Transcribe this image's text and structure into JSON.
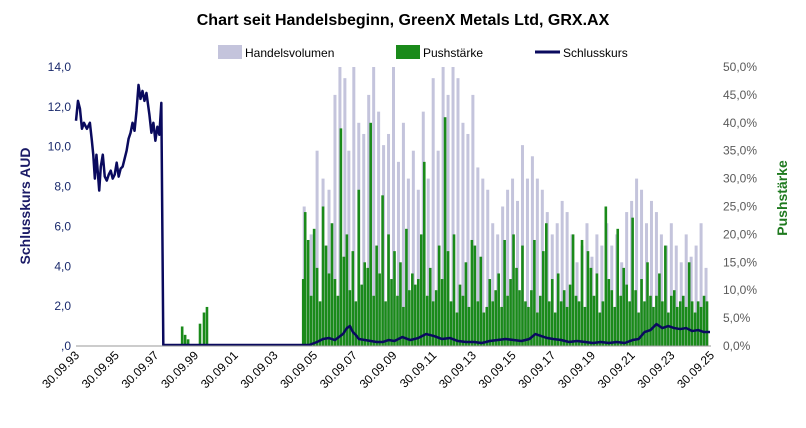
{
  "chart_data": {
    "type": "line",
    "title": "Chart seit Handelsbeginn, GreenX Metals Ltd, GRX.AX",
    "legend": {
      "position": "top",
      "entries": [
        {
          "name": "Handelsvolumen",
          "color": "#c4c4dc",
          "kind": "area"
        },
        {
          "name": "Pushstärke",
          "color": "#1a8a1a",
          "kind": "bar"
        },
        {
          "name": "Schlusskurs",
          "color": "#0a0a5e",
          "kind": "line"
        }
      ]
    },
    "y_left": {
      "label": "Schlusskurs AUD",
      "range": [
        0,
        14
      ],
      "ticks": [
        ",0",
        "2,0",
        "4,0",
        "6,0",
        "8,0",
        "10,0",
        "12,0",
        "14,0"
      ]
    },
    "y_right": {
      "label": "Pushstärke",
      "range": [
        0,
        50
      ],
      "ticks": [
        "0,0%",
        "5,0%",
        "10,0%",
        "15,0%",
        "20,0%",
        "25,0%",
        "30,0%",
        "35,0%",
        "40,0%",
        "45,0%",
        "50,0%"
      ]
    },
    "x_axis": {
      "range": [
        1993.75,
        2025.75
      ],
      "ticks": [
        "30.09.93",
        "30.09.95",
        "30.09.97",
        "30.09.99",
        "30.09.01",
        "30.09.03",
        "30.09.05",
        "30.09.07",
        "30.09.09",
        "30.09.11",
        "30.09.13",
        "30.09.15",
        "30.09.17",
        "30.09.19",
        "30.09.21",
        "30.09.23",
        "30.09.25"
      ]
    },
    "grid": false,
    "series": [
      {
        "name": "Schlusskurs",
        "x": [
          1993.75,
          1993.85,
          1993.95,
          1994.05,
          1994.15,
          1994.3,
          1994.45,
          1994.55,
          1994.62,
          1994.7,
          1994.78,
          1994.85,
          1994.92,
          1995.0,
          1995.1,
          1995.2,
          1995.3,
          1995.4,
          1995.5,
          1995.6,
          1995.7,
          1995.8,
          1995.9,
          1996.0,
          1996.1,
          1996.2,
          1996.3,
          1996.4,
          1996.5,
          1996.6,
          1996.7,
          1996.8,
          1996.9,
          1997.0,
          1997.1,
          1997.2,
          1997.3,
          1997.45,
          1997.55,
          1997.65,
          1997.75,
          1997.85,
          1997.95,
          1998.05,
          1998.15,
          1998.25,
          1998.35,
          1998.45,
          1998.55,
          1998.62,
          1998.65,
          1999.5,
          2000.5,
          2001.5,
          2002.5,
          2003.5,
          2004.5,
          2005.0,
          2005.5,
          2005.9,
          2006.2,
          2006.5,
          2006.8,
          2007.0,
          2007.2,
          2007.4,
          2007.55,
          2007.7,
          2007.85,
          2008.0,
          2008.3,
          2008.6,
          2008.9,
          2009.2,
          2009.5,
          2009.8,
          2010.2,
          2010.6,
          2011.0,
          2011.4,
          2011.8,
          2012.2,
          2012.6,
          2013.0,
          2013.4,
          2013.8,
          2014.2,
          2014.6,
          2015.0,
          2015.4,
          2015.8,
          2016.2,
          2016.6,
          2016.9,
          2017.2,
          2017.5,
          2017.8,
          2018.2,
          2018.6,
          2019.0,
          2019.4,
          2019.8,
          2020.2,
          2020.6,
          2021.0,
          2021.4,
          2021.8,
          2022.1,
          2022.4,
          2022.7,
          2023.0,
          2023.3,
          2023.6,
          2023.9,
          2024.2,
          2024.5,
          2024.8,
          2025.1,
          2025.4,
          2025.7
        ],
        "values": [
          11.3,
          12.3,
          11.9,
          10.9,
          11.2,
          10.9,
          11.2,
          10.3,
          9.6,
          8.4,
          9.6,
          8.7,
          7.8,
          9.0,
          9.6,
          8.5,
          8.3,
          8.6,
          8.8,
          8.4,
          8.6,
          9.2,
          8.5,
          8.9,
          9.0,
          9.4,
          9.8,
          10.4,
          10.7,
          11.2,
          10.8,
          11.8,
          13.1,
          12.4,
          12.8,
          12.3,
          12.7,
          11.6,
          10.7,
          11.2,
          10.3,
          11.0,
          10.6,
          12.2,
          0.05,
          0.05,
          0.05,
          0.05,
          0.05,
          0.05,
          0.05,
          0.05,
          0.05,
          0.05,
          0.05,
          0.05,
          0.05,
          0.05,
          0.05,
          0.2,
          0.35,
          0.4,
          0.3,
          0.45,
          0.6,
          0.9,
          1.0,
          0.7,
          0.55,
          0.35,
          0.3,
          0.25,
          0.2,
          0.2,
          0.3,
          0.25,
          0.45,
          0.3,
          0.4,
          0.6,
          0.5,
          0.35,
          0.4,
          0.25,
          0.2,
          0.2,
          0.15,
          0.25,
          0.3,
          0.35,
          0.3,
          0.25,
          0.35,
          0.6,
          0.5,
          0.4,
          0.35,
          0.3,
          0.2,
          0.25,
          0.2,
          0.15,
          0.2,
          0.15,
          0.2,
          0.15,
          0.3,
          0.35,
          0.7,
          0.8,
          1.1,
          0.9,
          1.0,
          0.9,
          0.85,
          0.9,
          0.75,
          0.8,
          0.7,
          0.7
        ]
      },
      {
        "name": "Pushstärke",
        "x": [
          1999.1,
          1999.25,
          1999.4,
          2000.0,
          2000.2,
          2000.35,
          2005.2,
          2005.3,
          2005.45,
          2005.6,
          2005.75,
          2005.9,
          2006.05,
          2006.2,
          2006.35,
          2006.5,
          2006.65,
          2006.8,
          2006.95,
          2007.1,
          2007.25,
          2007.4,
          2007.55,
          2007.7,
          2007.85,
          2008.0,
          2008.15,
          2008.3,
          2008.45,
          2008.6,
          2008.75,
          2008.9,
          2009.05,
          2009.2,
          2009.35,
          2009.5,
          2009.65,
          2009.8,
          2009.95,
          2010.1,
          2010.25,
          2010.4,
          2010.55,
          2010.7,
          2010.85,
          2011.0,
          2011.15,
          2011.3,
          2011.45,
          2011.6,
          2011.75,
          2011.9,
          2012.05,
          2012.2,
          2012.35,
          2012.5,
          2012.65,
          2012.8,
          2012.95,
          2013.1,
          2013.25,
          2013.4,
          2013.55,
          2013.7,
          2013.85,
          2014.0,
          2014.15,
          2014.3,
          2014.45,
          2014.6,
          2014.75,
          2014.9,
          2015.05,
          2015.2,
          2015.35,
          2015.5,
          2015.65,
          2015.8,
          2015.95,
          2016.1,
          2016.25,
          2016.4,
          2016.55,
          2016.7,
          2016.85,
          2017.0,
          2017.15,
          2017.3,
          2017.45,
          2017.6,
          2017.75,
          2017.9,
          2018.05,
          2018.2,
          2018.35,
          2018.5,
          2018.65,
          2018.8,
          2018.95,
          2019.1,
          2019.25,
          2019.4,
          2019.55,
          2019.7,
          2019.85,
          2020.0,
          2020.15,
          2020.3,
          2020.45,
          2020.6,
          2020.75,
          2020.9,
          2021.05,
          2021.2,
          2021.35,
          2021.5,
          2021.65,
          2021.8,
          2021.95,
          2022.1,
          2022.25,
          2022.4,
          2022.55,
          2022.7,
          2022.85,
          2023.0,
          2023.15,
          2023.3,
          2023.45,
          2023.6,
          2023.75,
          2023.9,
          2024.05,
          2024.2,
          2024.35,
          2024.5,
          2024.65,
          2024.8,
          2024.95,
          2025.1,
          2025.25,
          2025.4,
          2025.55
        ],
        "values": [
          3.5,
          2.0,
          1.2,
          4.0,
          6.0,
          7.0,
          12.0,
          24.0,
          19.0,
          9.0,
          21.0,
          14.0,
          8.0,
          25.0,
          18.0,
          13.0,
          22.0,
          12.0,
          9.0,
          39.0,
          16.0,
          20.0,
          10.0,
          17.0,
          8.0,
          28.0,
          11.0,
          15.0,
          14.0,
          40.0,
          9.0,
          18.0,
          13.0,
          27.0,
          8.0,
          20.0,
          12.0,
          17.0,
          9.0,
          15.0,
          7.0,
          21.0,
          10.0,
          13.0,
          11.0,
          12.0,
          20.0,
          33.0,
          9.0,
          14.0,
          8.0,
          10.0,
          18.0,
          12.0,
          41.0,
          17.0,
          8.0,
          20.0,
          6.0,
          11.0,
          9.0,
          15.0,
          7.0,
          19.0,
          18.0,
          8.0,
          16.0,
          6.0,
          7.0,
          12.0,
          8.0,
          10.0,
          13.0,
          7.0,
          19.0,
          9.0,
          12.0,
          20.0,
          14.0,
          10.0,
          18.0,
          8.0,
          7.0,
          10.0,
          19.0,
          6.0,
          9.0,
          17.0,
          22.0,
          8.0,
          12.0,
          6.0,
          13.0,
          8.0,
          10.0,
          7.0,
          11.0,
          20.0,
          9.0,
          8.0,
          19.0,
          7.0,
          17.0,
          14.0,
          9.0,
          13.0,
          6.0,
          8.0,
          25.0,
          12.0,
          10.0,
          7.0,
          21.0,
          9.0,
          14.0,
          11.0,
          8.0,
          23.0,
          10.0,
          6.0,
          12.0,
          8.0,
          15.0,
          9.0,
          7.0,
          9.0,
          13.0,
          8.0,
          18.0,
          6.0,
          9.0,
          10.0,
          7.0,
          8.0,
          9.0,
          7.0,
          15.0,
          8.0,
          6.0,
          8.0,
          7.0,
          9.0,
          8.0
        ]
      },
      {
        "name": "Handelsvolumen",
        "x": [
          2005.25,
          2005.6,
          2005.9,
          2006.2,
          2006.5,
          2006.8,
          2007.05,
          2007.3,
          2007.5,
          2007.75,
          2008.0,
          2008.25,
          2008.5,
          2008.75,
          2009.0,
          2009.25,
          2009.5,
          2009.75,
          2010.0,
          2010.25,
          2010.5,
          2010.75,
          2011.0,
          2011.25,
          2011.5,
          2011.75,
          2012.0,
          2012.25,
          2012.5,
          2012.75,
          2013.0,
          2013.25,
          2013.5,
          2013.75,
          2014.0,
          2014.25,
          2014.5,
          2014.75,
          2015.0,
          2015.25,
          2015.5,
          2015.75,
          2016.0,
          2016.25,
          2016.5,
          2016.75,
          2017.0,
          2017.25,
          2017.5,
          2017.75,
          2018.0,
          2018.25,
          2018.5,
          2018.75,
          2019.0,
          2019.25,
          2019.5,
          2019.75,
          2020.0,
          2020.25,
          2020.5,
          2020.75,
          2021.0,
          2021.25,
          2021.5,
          2021.75,
          2022.0,
          2022.25,
          2022.5,
          2022.75,
          2023.0,
          2023.25,
          2023.5,
          2023.75,
          2024.0,
          2024.25,
          2024.5,
          2024.75,
          2025.0,
          2025.25,
          2025.5
        ],
        "values": [
          25,
          20,
          35,
          30,
          28,
          45,
          50,
          48,
          35,
          50,
          40,
          38,
          45,
          50,
          42,
          36,
          38,
          50,
          33,
          40,
          30,
          35,
          28,
          42,
          30,
          48,
          35,
          50,
          45,
          50,
          48,
          40,
          38,
          45,
          32,
          30,
          28,
          22,
          20,
          25,
          28,
          30,
          26,
          36,
          30,
          34,
          30,
          28,
          24,
          20,
          22,
          26,
          24,
          20,
          15,
          18,
          22,
          16,
          20,
          18,
          22,
          18,
          20,
          15,
          24,
          26,
          30,
          28,
          22,
          26,
          24,
          20,
          18,
          22,
          18,
          15,
          20,
          16,
          18,
          22,
          14
        ]
      }
    ]
  }
}
